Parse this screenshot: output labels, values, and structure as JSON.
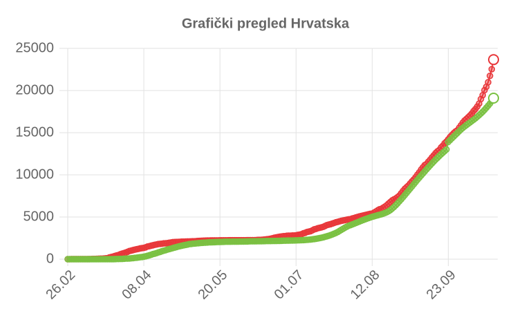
{
  "chart_data": {
    "type": "scatter-line",
    "title": "Grafički pregled Hrvatska",
    "categories": [
      "26.02",
      null,
      null,
      null,
      null,
      null,
      null,
      null,
      null,
      null,
      null,
      null,
      null,
      null,
      null,
      null,
      null,
      null,
      null,
      null,
      null,
      null,
      null,
      null,
      null,
      null,
      null,
      null,
      null,
      null,
      null,
      null,
      null,
      null,
      null,
      null,
      null,
      null,
      null,
      null,
      null,
      null,
      "08.04",
      null,
      null,
      null,
      null,
      null,
      null,
      null,
      null,
      null,
      null,
      null,
      null,
      null,
      null,
      null,
      null,
      null,
      null,
      null,
      null,
      null,
      null,
      null,
      null,
      null,
      null,
      null,
      null,
      null,
      null,
      null,
      null,
      null,
      null,
      null,
      null,
      null,
      null,
      null,
      null,
      null,
      "20.05",
      null,
      null,
      null,
      null,
      null,
      null,
      null,
      null,
      null,
      null,
      null,
      null,
      null,
      null,
      null,
      null,
      null,
      null,
      null,
      null,
      null,
      null,
      null,
      null,
      null,
      null,
      null,
      null,
      null,
      null,
      null,
      null,
      null,
      null,
      null,
      null,
      null,
      null,
      null,
      null,
      null,
      "01.07",
      null,
      null,
      null,
      null,
      null,
      null,
      null,
      null,
      null,
      null,
      null,
      null,
      null,
      null,
      null,
      null,
      null,
      null,
      null,
      null,
      null,
      null,
      null,
      null,
      null,
      null,
      null,
      null,
      null,
      null,
      null,
      null,
      null,
      null,
      null,
      null,
      null,
      null,
      null,
      null,
      null,
      "12.08",
      null,
      null,
      null,
      null,
      null,
      null,
      null,
      null,
      null,
      null,
      null,
      null,
      null,
      null,
      null,
      null,
      null,
      null,
      null,
      null,
      null,
      null,
      null,
      null,
      null,
      null,
      null,
      null,
      null,
      null,
      null,
      null,
      null,
      null,
      null,
      null,
      null,
      null,
      null,
      null,
      null,
      "23.09",
      null,
      null,
      null,
      null,
      null,
      null,
      null,
      null,
      null,
      null,
      null,
      null,
      null,
      null,
      null,
      null,
      null,
      null,
      null,
      null,
      null,
      null,
      null,
      null,
      null
    ],
    "series": [
      {
        "color": "#e8373a",
        "values": [
          3,
          5,
          7,
          9,
          10,
          10,
          12,
          12,
          12,
          12,
          14,
          14,
          14,
          19,
          27,
          32,
          38,
          49,
          57,
          65,
          81,
          105,
          128,
          206,
          254,
          306,
          382,
          442,
          495,
          586,
          657,
          713,
          790,
          867,
          963,
          1011,
          1079,
          1126,
          1182,
          1222,
          1282,
          1310,
          1343,
          1407,
          1495,
          1534,
          1600,
          1650,
          1704,
          1741,
          1791,
          1814,
          1832,
          1871,
          1881,
          1908,
          1950,
          1981,
          2016,
          2030,
          2039,
          2047,
          2062,
          2076,
          2085,
          2088,
          2096,
          2101,
          2112,
          2119,
          2125,
          2146,
          2161,
          2176,
          2187,
          2196,
          2205,
          2209,
          2213,
          2221,
          2222,
          2224,
          2226,
          2228,
          2232,
          2234,
          2236,
          2237,
          2238,
          2239,
          2243,
          2244,
          2244,
          2245,
          2246,
          2246,
          2247,
          2247,
          2247,
          2249,
          2250,
          2252,
          2254,
          2258,
          2269,
          2280,
          2289,
          2299,
          2316,
          2336,
          2366,
          2388,
          2425,
          2483,
          2542,
          2585,
          2621,
          2660,
          2691,
          2725,
          2740,
          2777,
          2786,
          2792,
          2803,
          2812,
          2831,
          2878,
          2912,
          2963,
          3060,
          3126,
          3220,
          3272,
          3322,
          3416,
          3532,
          3588,
          3672,
          3722,
          3775,
          3835,
          3936,
          4039,
          4094,
          4150,
          4222,
          4298,
          4370,
          4422,
          4486,
          4549,
          4594,
          4634,
          4682,
          4720,
          4746,
          4821,
          4881,
          4947,
          5012,
          5073,
          5128,
          5170,
          5224,
          5277,
          5325,
          5376,
          5404,
          5523,
          5649,
          5784,
          5910,
          5961,
          6099,
          6229,
          6380,
          6592,
          6773,
          6963,
          7095,
          7198,
          7357,
          7528,
          7804,
          8081,
          8340,
          8541,
          8728,
          8989,
          9231,
          9456,
          9724,
          10017,
          10300,
          10617,
          10894,
          11156,
          11287,
          11560,
          11796,
          12069,
          12315,
          12585,
          12789,
          12944,
          13239,
          13456,
          13749,
          13951,
          14208,
          14488,
          14726,
          14947,
          15145,
          15280,
          15572,
          15870,
          16190,
          16443,
          16634,
          16838,
          17040,
          17277,
          17576,
          17809,
          18099,
          18447,
          18989,
          19446,
          20044,
          20440,
          20987,
          21741,
          22534,
          23665
        ]
      },
      {
        "color": "#7ac142",
        "values": [
          0,
          0,
          0,
          0,
          0,
          0,
          0,
          0,
          0,
          0,
          0,
          0,
          0,
          0,
          1,
          1,
          2,
          2,
          3,
          5,
          5,
          5,
          5,
          5,
          5,
          5,
          14,
          18,
          22,
          26,
          30,
          52,
          67,
          73,
          80,
          105,
          125,
          152,
          176,
          202,
          231,
          255,
          300,
          339,
          400,
          456,
          518,
          600,
          659,
          714,
          800,
          862,
          939,
          1004,
          1064,
          1135,
          1199,
          1250,
          1323,
          1379,
          1432,
          1495,
          1548,
          1598,
          1648,
          1693,
          1729,
          1778,
          1806,
          1834,
          1855,
          1874,
          1895,
          1914,
          1936,
          1951,
          1962,
          1978,
          1994,
          2000,
          2009,
          2019,
          2029,
          2035,
          2043,
          2051,
          2055,
          2066,
          2069,
          2072,
          2074,
          2079,
          2081,
          2082,
          2084,
          2087,
          2093,
          2095,
          2097,
          2104,
          2111,
          2117,
          2119,
          2122,
          2125,
          2127,
          2131,
          2135,
          2141,
          2146,
          2150,
          2152,
          2155,
          2158,
          2162,
          2166,
          2170,
          2175,
          2182,
          2188,
          2194,
          2200,
          2205,
          2211,
          2217,
          2222,
          2228,
          2235,
          2243,
          2251,
          2262,
          2277,
          2293,
          2310,
          2330,
          2355,
          2384,
          2416,
          2456,
          2501,
          2546,
          2595,
          2651,
          2711,
          2778,
          2850,
          2930,
          3020,
          3110,
          3220,
          3350,
          3480,
          3610,
          3740,
          3850,
          3960,
          4040,
          4120,
          4200,
          4290,
          4380,
          4470,
          4560,
          4640,
          4720,
          4800,
          4880,
          4950,
          5020,
          5080,
          5140,
          5200,
          5260,
          5320,
          5390,
          5470,
          5560,
          5680,
          5820,
          5990,
          6180,
          6390,
          6610,
          6850,
          7090,
          7340,
          7590,
          7850,
          8110,
          8370,
          8630,
          8890,
          9150,
          9410,
          9660,
          9910,
          10150,
          10400,
          10640,
          10880,
          11120,
          11350,
          11580,
          11800,
          12010,
          12220,
          12430,
          12620,
          12820,
          13010,
          13900,
          14120,
          14330,
          14540,
          14750,
          14960,
          15170,
          15380,
          15560,
          15740,
          15900,
          16060,
          16220,
          16380,
          16540,
          16700,
          16890,
          17080,
          17270,
          17480,
          17700,
          17950,
          18200,
          18450,
          18750,
          19100
        ]
      }
    ],
    "ylim": [
      0,
      25000
    ],
    "yticks": [
      0,
      5000,
      10000,
      15000,
      20000,
      25000
    ],
    "grid": true
  }
}
